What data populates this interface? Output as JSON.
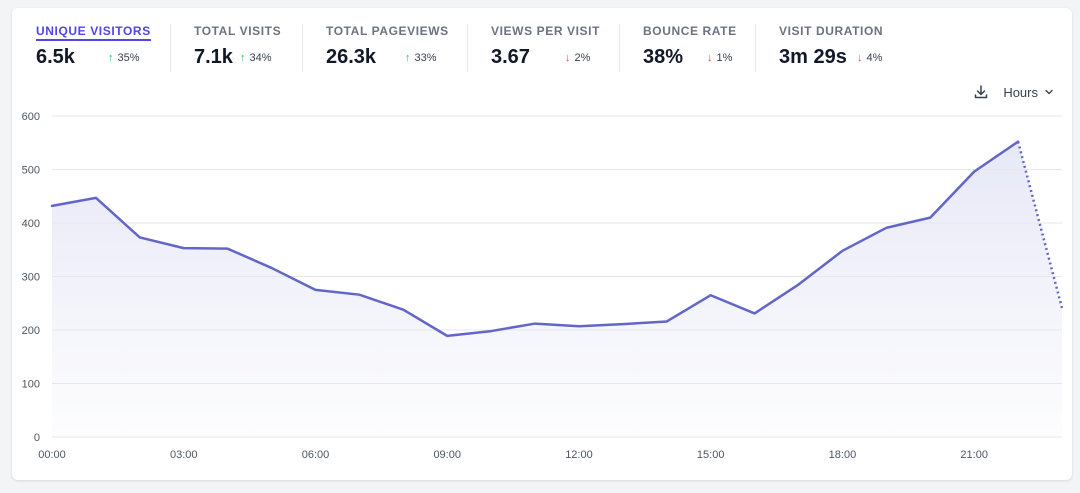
{
  "metrics": [
    {
      "label": "UNIQUE VISITORS",
      "value": "6.5k",
      "change": "35%",
      "direction": "up",
      "active": true
    },
    {
      "label": "TOTAL VISITS",
      "value": "7.1k",
      "change": "34%",
      "direction": "up",
      "active": false
    },
    {
      "label": "TOTAL PAGEVIEWS",
      "value": "26.3k",
      "change": "33%",
      "direction": "up",
      "active": false
    },
    {
      "label": "VIEWS PER VISIT",
      "value": "3.67",
      "change": "2%",
      "direction": "down",
      "active": false
    },
    {
      "label": "BOUNCE RATE",
      "value": "38%",
      "change": "1%",
      "direction": "down",
      "active": false
    },
    {
      "label": "VISIT DURATION",
      "value": "3m 29s",
      "change": "4%",
      "direction": "down",
      "active": false
    }
  ],
  "controls": {
    "interval_label": "Hours",
    "download_icon": "download-icon",
    "dropdown_icon": "chevron-down-icon"
  },
  "colors": {
    "line": "#6366c8",
    "fill": "#e6e7f6",
    "up": "#22c55e",
    "down": "#ef4444",
    "active": "#4f46e5"
  },
  "chart_data": {
    "type": "area",
    "title": "",
    "xlabel": "",
    "ylabel": "",
    "ylim": [
      0,
      600
    ],
    "y_ticks": [
      0,
      100,
      200,
      300,
      400,
      500,
      600
    ],
    "x_tick_labels": [
      "00:00",
      "03:00",
      "06:00",
      "09:00",
      "12:00",
      "15:00",
      "18:00",
      "21:00"
    ],
    "grid": true,
    "x": [
      "00:00",
      "01:00",
      "02:00",
      "03:00",
      "04:00",
      "05:00",
      "06:00",
      "07:00",
      "08:00",
      "09:00",
      "10:00",
      "11:00",
      "12:00",
      "13:00",
      "14:00",
      "15:00",
      "16:00",
      "17:00",
      "18:00",
      "19:00",
      "20:00",
      "21:00",
      "22:00",
      "23:00"
    ],
    "series": [
      {
        "values": [
          432,
          447,
          373,
          353,
          352,
          316,
          275,
          266,
          238,
          189,
          198,
          212,
          207,
          211,
          216,
          265,
          231,
          285,
          348,
          391,
          410,
          496,
          552,
          241
        ],
        "incomplete_from_index": 22
      }
    ]
  }
}
